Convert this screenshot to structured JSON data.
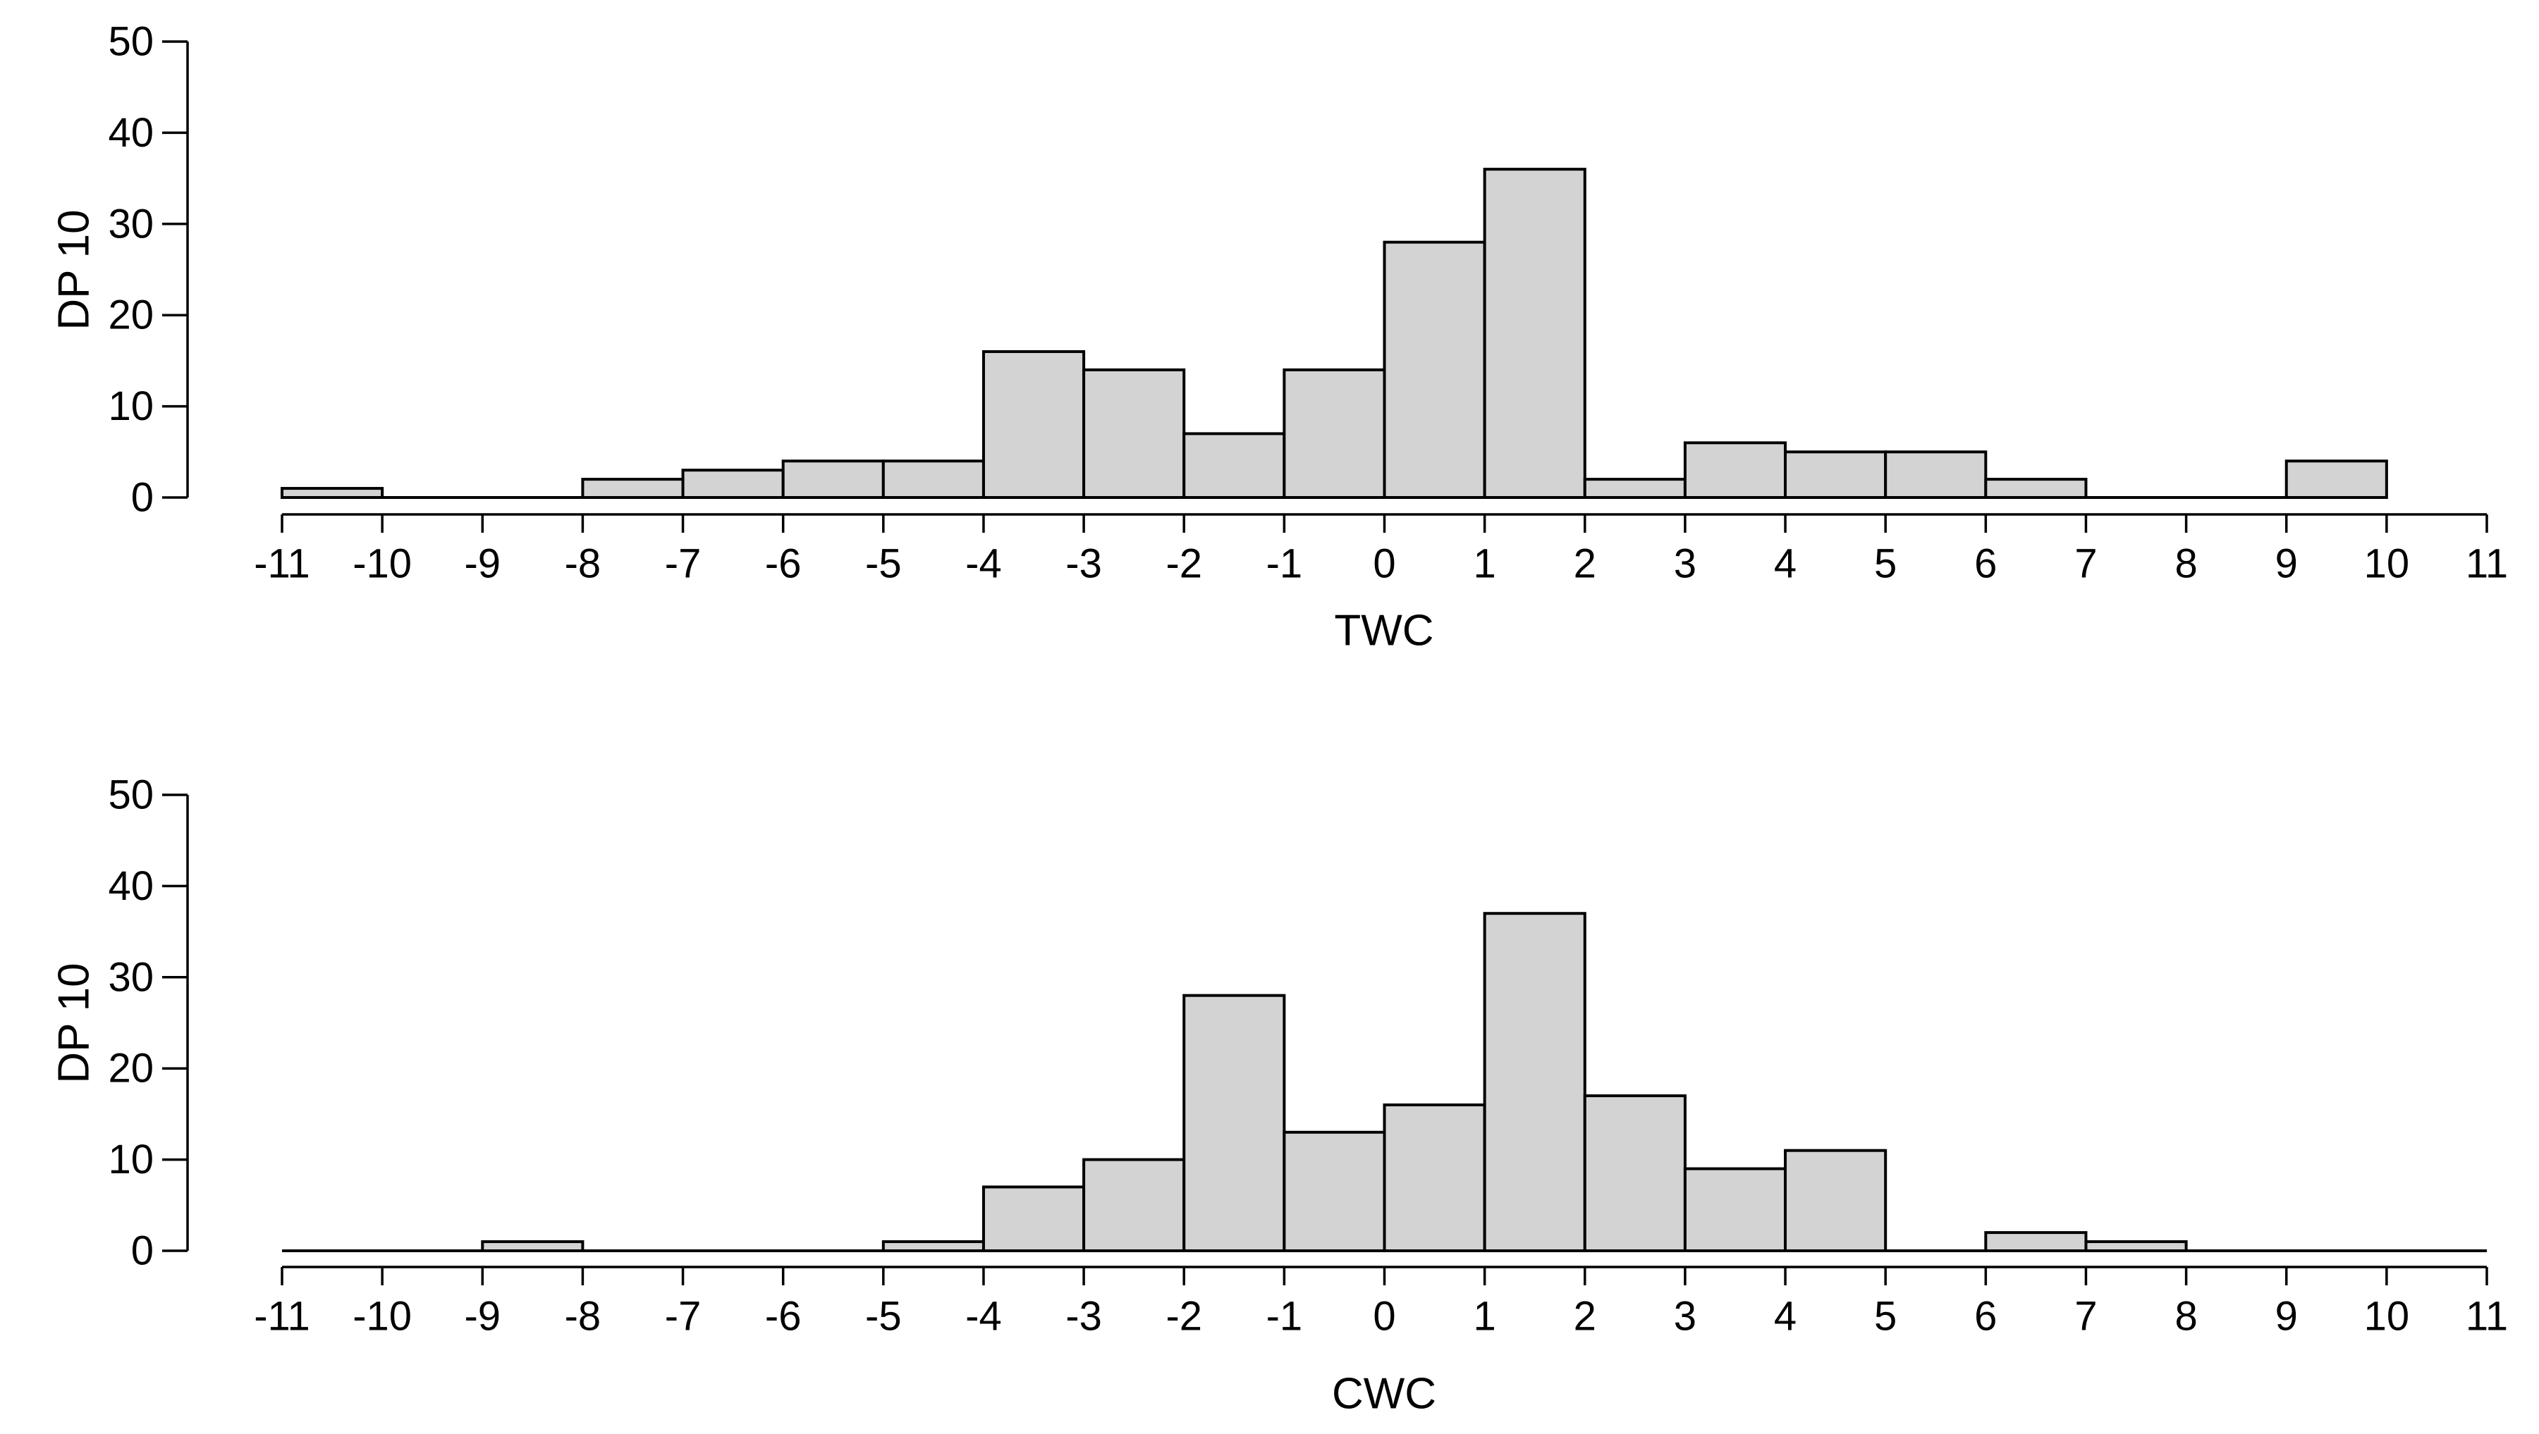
{
  "page": {
    "background": "#ffffff",
    "text_color": "#000000"
  },
  "chart_data": [
    {
      "type": "bar",
      "chart_kind": "histogram",
      "title": "",
      "xlabel": "TWC",
      "ylabel": "DP 10",
      "bin_edges": [
        -11,
        -10,
        -9,
        -8,
        -7,
        -6,
        -5,
        -4,
        -3,
        -2,
        -1,
        0,
        1,
        2,
        3,
        4,
        5,
        6,
        7,
        8,
        9,
        10,
        11
      ],
      "counts": [
        1,
        0,
        0,
        2,
        3,
        4,
        4,
        16,
        14,
        7,
        14,
        28,
        36,
        2,
        6,
        5,
        5,
        2,
        0,
        0,
        4,
        0
      ],
      "x_ticks": [
        -11,
        -10,
        -9,
        -8,
        -7,
        -6,
        -5,
        -4,
        -3,
        -2,
        -1,
        0,
        1,
        2,
        3,
        4,
        5,
        6,
        7,
        8,
        9,
        10,
        11
      ],
      "y_ticks": [
        0,
        10,
        20,
        30,
        40,
        50
      ],
      "xlim": [
        -11,
        11
      ],
      "ylim": [
        0,
        50
      ],
      "baseline_span": [
        -11,
        10
      ],
      "grid": false,
      "legend": null,
      "bar_fill": "#d3d3d3",
      "bar_stroke": "#000000",
      "axis_color": "#000000"
    },
    {
      "type": "bar",
      "chart_kind": "histogram",
      "title": "",
      "xlabel": "CWC",
      "ylabel": "DP 10",
      "bin_edges": [
        -11,
        -10,
        -9,
        -8,
        -7,
        -6,
        -5,
        -4,
        -3,
        -2,
        -1,
        0,
        1,
        2,
        3,
        4,
        5,
        6,
        7,
        8,
        9,
        10,
        11
      ],
      "counts": [
        0,
        0,
        1,
        0,
        0,
        0,
        1,
        7,
        10,
        28,
        13,
        16,
        37,
        17,
        9,
        11,
        0,
        2,
        1,
        0,
        0,
        0
      ],
      "x_ticks": [
        -11,
        -10,
        -9,
        -8,
        -7,
        -6,
        -5,
        -4,
        -3,
        -2,
        -1,
        0,
        1,
        2,
        3,
        4,
        5,
        6,
        7,
        8,
        9,
        10,
        11
      ],
      "y_ticks": [
        0,
        10,
        20,
        30,
        40,
        50
      ],
      "xlim": [
        -11,
        11
      ],
      "ylim": [
        0,
        50
      ],
      "baseline_span": [
        -11,
        11
      ],
      "grid": false,
      "legend": null,
      "bar_fill": "#d3d3d3",
      "bar_stroke": "#000000",
      "axis_color": "#000000"
    }
  ]
}
